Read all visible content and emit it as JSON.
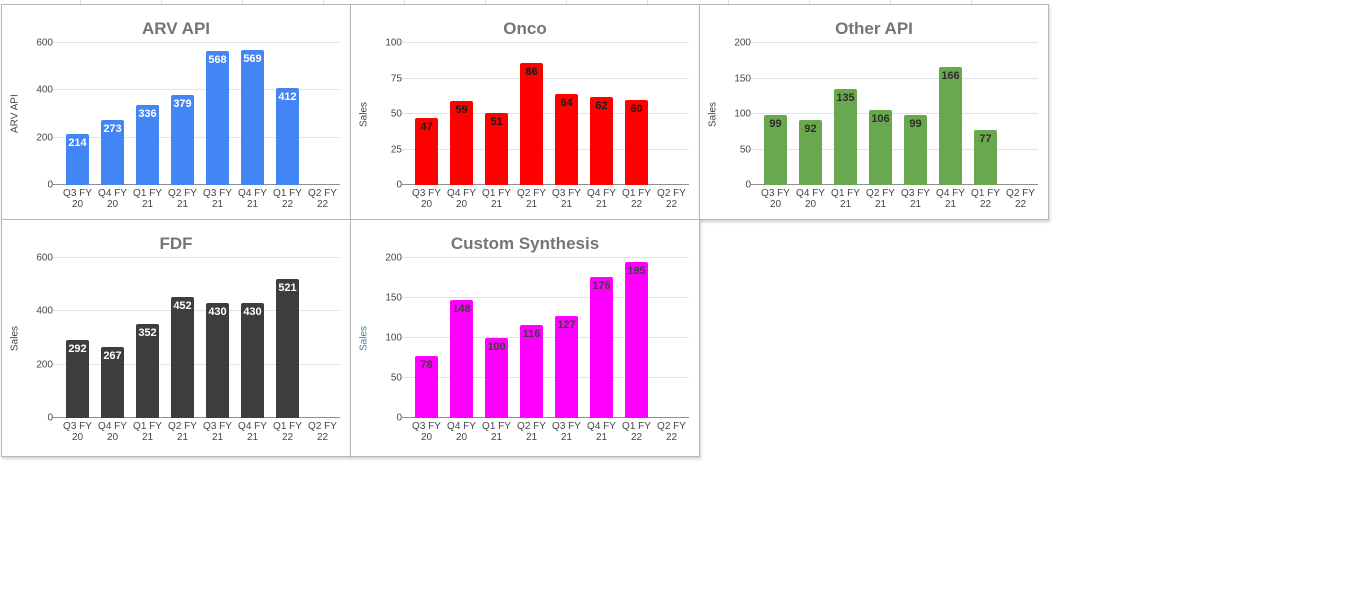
{
  "page": {
    "background": "#ffffff",
    "sheet_gridline_color": "#e1e1e1"
  },
  "chart_data": [
    {
      "type": "bar",
      "title": "ARV API",
      "ylabel": "ARV API",
      "xlabel": "",
      "categories": [
        "Q3 FY 20",
        "Q4 FY 20",
        "Q1 FY 21",
        "Q2 FY 21",
        "Q3 FY 21",
        "Q4 FY 21",
        "Q1 FY 22",
        "Q2 FY 22"
      ],
      "values": [
        214,
        273,
        336,
        379,
        568,
        569,
        412,
        null
      ],
      "ylim": [
        0,
        600
      ],
      "yticks": [
        0,
        200,
        400,
        600
      ],
      "grid": true,
      "legend": "none",
      "bar_color": "#4285f4",
      "label_color": "#ffffff",
      "ylabel_color": "#434343"
    },
    {
      "type": "bar",
      "title": "Onco",
      "ylabel": "Sales",
      "xlabel": "",
      "categories": [
        "Q3 FY 20",
        "Q4 FY 20",
        "Q1 FY 21",
        "Q2 FY 21",
        "Q3 FY 21",
        "Q4 FY 21",
        "Q1 FY 22",
        "Q2 FY 22"
      ],
      "values": [
        47,
        59,
        51,
        86,
        64,
        62,
        60,
        null
      ],
      "ylim": [
        0,
        100
      ],
      "yticks": [
        0,
        25,
        50,
        75,
        100
      ],
      "grid": true,
      "legend": "none",
      "bar_color": "#ff0000",
      "label_color": "#1a1a1a",
      "ylabel_color": "#434343"
    },
    {
      "type": "bar",
      "title": "Other API",
      "ylabel": "Sales",
      "xlabel": "",
      "categories": [
        "Q3 FY 20",
        "Q4 FY 20",
        "Q1 FY 21",
        "Q2 FY 21",
        "Q3 FY 21",
        "Q4 FY 21",
        "Q1 FY 22",
        "Q2 FY 22"
      ],
      "values": [
        99,
        92,
        135,
        106,
        99,
        166,
        77,
        null
      ],
      "ylim": [
        0,
        200
      ],
      "yticks": [
        0,
        50,
        100,
        150,
        200
      ],
      "grid": true,
      "legend": "none",
      "bar_color": "#6aa84f",
      "label_color": "#2d2d2d",
      "ylabel_color": "#434343"
    },
    {
      "type": "bar",
      "title": "FDF",
      "ylabel": "Sales",
      "xlabel": "",
      "categories": [
        "Q3 FY 20",
        "Q4 FY 20",
        "Q1 FY 21",
        "Q2 FY 21",
        "Q3 FY 21",
        "Q4 FY 21",
        "Q1 FY 22",
        "Q2 FY 22"
      ],
      "values": [
        292,
        267,
        352,
        452,
        430,
        430,
        521,
        null
      ],
      "ylim": [
        0,
        600
      ],
      "yticks": [
        0,
        200,
        400,
        600
      ],
      "grid": true,
      "legend": "none",
      "bar_color": "#3d3d3d",
      "label_color": "#ffffff",
      "ylabel_color": "#434343"
    },
    {
      "type": "bar",
      "title": "Custom Synthesis",
      "ylabel": "Sales",
      "xlabel": "",
      "categories": [
        "Q3 FY 20",
        "Q4 FY 20",
        "Q1 FY 21",
        "Q2 FY 21",
        "Q3 FY 21",
        "Q4 FY 21",
        "Q1 FY 22",
        "Q2 FY 22"
      ],
      "values": [
        78,
        148,
        100,
        116,
        127,
        176,
        195,
        null
      ],
      "ylim": [
        0,
        200
      ],
      "yticks": [
        0,
        50,
        100,
        150,
        200
      ],
      "grid": true,
      "legend": "none",
      "bar_color": "#ff00ff",
      "label_color": "#3f3f3f",
      "ylabel_color": "#45818e"
    }
  ]
}
